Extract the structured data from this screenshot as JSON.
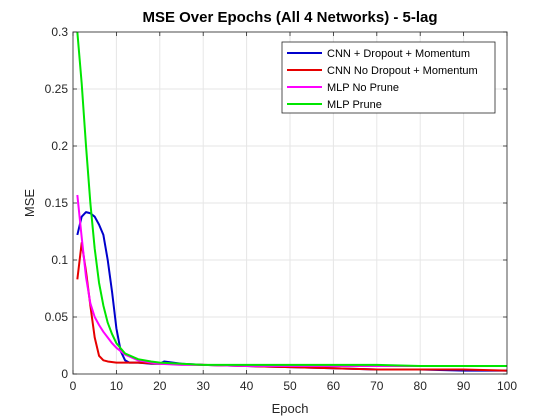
{
  "chart_data": {
    "type": "line",
    "title": "MSE Over Epochs (All 4 Networks) - 5-lag",
    "xlabel": "Epoch",
    "ylabel": "MSE",
    "xlim": [
      0,
      100
    ],
    "ylim": [
      0,
      0.3
    ],
    "xticks": [
      "0",
      "10",
      "20",
      "30",
      "40",
      "50",
      "60",
      "70",
      "80",
      "90",
      "100"
    ],
    "yticks": [
      "0",
      "0.05",
      "0.1",
      "0.15",
      "0.2",
      "0.25",
      "0.3"
    ],
    "grid": true,
    "legend_position": "top-right",
    "series": [
      {
        "name": "CNN + Dropout + Momentum",
        "color": "#0000cc",
        "points": [
          [
            1,
            0.122
          ],
          [
            2,
            0.138
          ],
          [
            3,
            0.142
          ],
          [
            4,
            0.141
          ],
          [
            5,
            0.138
          ],
          [
            6,
            0.131
          ],
          [
            7,
            0.122
          ],
          [
            8,
            0.1
          ],
          [
            9,
            0.072
          ],
          [
            10,
            0.04
          ],
          [
            11,
            0.02
          ],
          [
            12,
            0.012
          ],
          [
            13,
            0.01
          ],
          [
            15,
            0.01
          ],
          [
            18,
            0.009
          ],
          [
            20,
            0.009
          ],
          [
            21,
            0.011
          ],
          [
            25,
            0.009
          ],
          [
            30,
            0.008
          ],
          [
            40,
            0.007
          ],
          [
            50,
            0.006
          ],
          [
            60,
            0.005
          ],
          [
            70,
            0.004
          ],
          [
            80,
            0.004
          ],
          [
            90,
            0.003
          ],
          [
            100,
            0.003
          ]
        ]
      },
      {
        "name": "CNN No Dropout + Momentum",
        "color": "#e60000",
        "points": [
          [
            1,
            0.083
          ],
          [
            2,
            0.115
          ],
          [
            3,
            0.09
          ],
          [
            4,
            0.06
          ],
          [
            5,
            0.032
          ],
          [
            6,
            0.016
          ],
          [
            7,
            0.012
          ],
          [
            8,
            0.011
          ],
          [
            10,
            0.01
          ],
          [
            15,
            0.01
          ],
          [
            20,
            0.009
          ],
          [
            30,
            0.008
          ],
          [
            40,
            0.007
          ],
          [
            50,
            0.006
          ],
          [
            60,
            0.005
          ],
          [
            70,
            0.004
          ],
          [
            80,
            0.004
          ],
          [
            90,
            0.004
          ],
          [
            100,
            0.003
          ]
        ]
      },
      {
        "name": "MLP No Prune",
        "color": "#ff00ff",
        "points": [
          [
            1,
            0.157
          ],
          [
            2,
            0.12
          ],
          [
            3,
            0.085
          ],
          [
            4,
            0.062
          ],
          [
            5,
            0.05
          ],
          [
            6,
            0.043
          ],
          [
            7,
            0.037
          ],
          [
            8,
            0.032
          ],
          [
            9,
            0.027
          ],
          [
            10,
            0.023
          ],
          [
            12,
            0.017
          ],
          [
            15,
            0.012
          ],
          [
            18,
            0.01
          ],
          [
            20,
            0.009
          ],
          [
            25,
            0.008
          ],
          [
            30,
            0.008
          ],
          [
            40,
            0.007
          ],
          [
            50,
            0.007
          ],
          [
            60,
            0.007
          ],
          [
            70,
            0.007
          ],
          [
            80,
            0.007
          ],
          [
            90,
            0.007
          ],
          [
            100,
            0.007
          ]
        ]
      },
      {
        "name": "MLP Prune",
        "color": "#00e600",
        "points": [
          [
            1,
            0.3
          ],
          [
            2,
            0.255
          ],
          [
            3,
            0.2
          ],
          [
            4,
            0.15
          ],
          [
            5,
            0.11
          ],
          [
            6,
            0.08
          ],
          [
            7,
            0.06
          ],
          [
            8,
            0.045
          ],
          [
            9,
            0.035
          ],
          [
            10,
            0.027
          ],
          [
            12,
            0.018
          ],
          [
            15,
            0.013
          ],
          [
            18,
            0.011
          ],
          [
            20,
            0.01
          ],
          [
            25,
            0.009
          ],
          [
            30,
            0.008
          ],
          [
            40,
            0.008
          ],
          [
            50,
            0.008
          ],
          [
            60,
            0.008
          ],
          [
            70,
            0.008
          ],
          [
            80,
            0.007
          ],
          [
            90,
            0.007
          ],
          [
            100,
            0.007
          ]
        ]
      }
    ]
  }
}
